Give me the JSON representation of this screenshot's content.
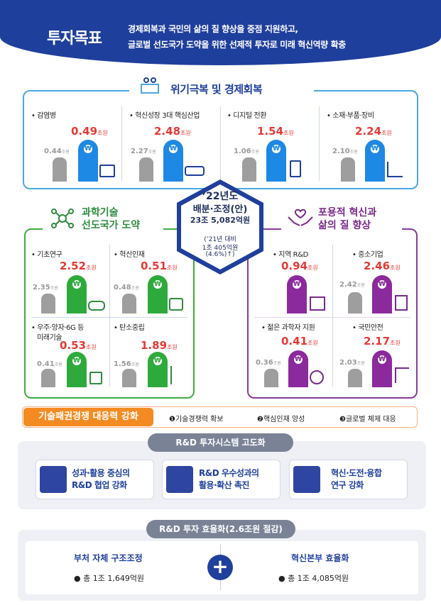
{
  "header": {
    "title": "투자목표",
    "line1": "경제회복과 국민의 삶의 질 향상을 중점 지원하고,",
    "line2": "글로벌 선도국가 도약을 위한 선제적 투자로 미래 혁신역량 확충"
  },
  "unit": "조원",
  "crisis": {
    "title": "위기극복 및 경제회복",
    "items": [
      {
        "label": "• 감염병",
        "cur": "0.49",
        "prev": "0.44"
      },
      {
        "label": "• 혁신성장 3대 핵심산업",
        "cur": "2.48",
        "prev": "2.27"
      },
      {
        "label": "• 디지털 전환",
        "cur": "1.54",
        "prev": "1.06"
      },
      {
        "label": "• 소재·부품·장비",
        "cur": "2.24",
        "prev": "2.10"
      }
    ]
  },
  "center": {
    "l1": "’22년도",
    "l2": "배분·조정(안)",
    "l3": "23조 5,082억원",
    "l4": "(’21년 대비",
    "l5": "1조 405억원",
    "l6": "(4.6%)↑)"
  },
  "science": {
    "title1": "과학기술",
    "title2": "선도국가 도약",
    "items": [
      {
        "label": "• 기초연구",
        "cur": "2.52",
        "prev": "2.35"
      },
      {
        "label": "• 혁신인재",
        "cur": "0.51",
        "prev": "0.48"
      },
      {
        "label": "• 우주·양자·6G 등",
        "label2": "미래기술",
        "cur": "0.53",
        "prev": "0.41"
      },
      {
        "label": "• 탄소중립",
        "cur": "1.89",
        "prev": "1.56"
      }
    ]
  },
  "inclusive": {
    "title1": "포용적 혁신과",
    "title2": "삶의 질 향상",
    "items": [
      {
        "label": "• 지역 R&D",
        "cur": "0.94",
        "prev": ""
      },
      {
        "label": "• 중소기업",
        "cur": "2.46",
        "prev": "2.42"
      },
      {
        "label": "• 젊은 과학자 지원",
        "cur": "0.41",
        "prev": "0.36"
      },
      {
        "label": "• 국민안전",
        "cur": "2.17",
        "prev": "2.03"
      }
    ]
  },
  "tech": {
    "label": "기술패권경쟁 대응력 강화",
    "items": [
      "❶기술경쟁력 확보",
      "❷핵심인재 양성",
      "❸글로벌 체제 대응"
    ]
  },
  "rnd_system": {
    "banner": "R&D 투자시스템 고도화",
    "cards": [
      {
        "l1": "성과·활용 중심의",
        "l2": "R&D 협업 강화"
      },
      {
        "l1": "R&D 우수성과의",
        "l2": "활용·확산 촉진"
      },
      {
        "l1": "혁신·도전·융합",
        "l2": "연구 강화"
      }
    ]
  },
  "efficiency": {
    "banner": "R&D 투자 효율화(2.6조원 절감)",
    "left_title": "부처 자체 구조조정",
    "left_val": "● 총 1조 1,649억원",
    "right_title": "혁신본부 효율화",
    "right_val": "● 총 1조 4,085억원",
    "plus": "+"
  },
  "colors": {
    "navy": "#1f3f9c",
    "blue": "#1e88e5",
    "green": "#2eaa3c",
    "purple": "#8b2a9c",
    "red": "#e53935",
    "orange": "#f38b22"
  }
}
